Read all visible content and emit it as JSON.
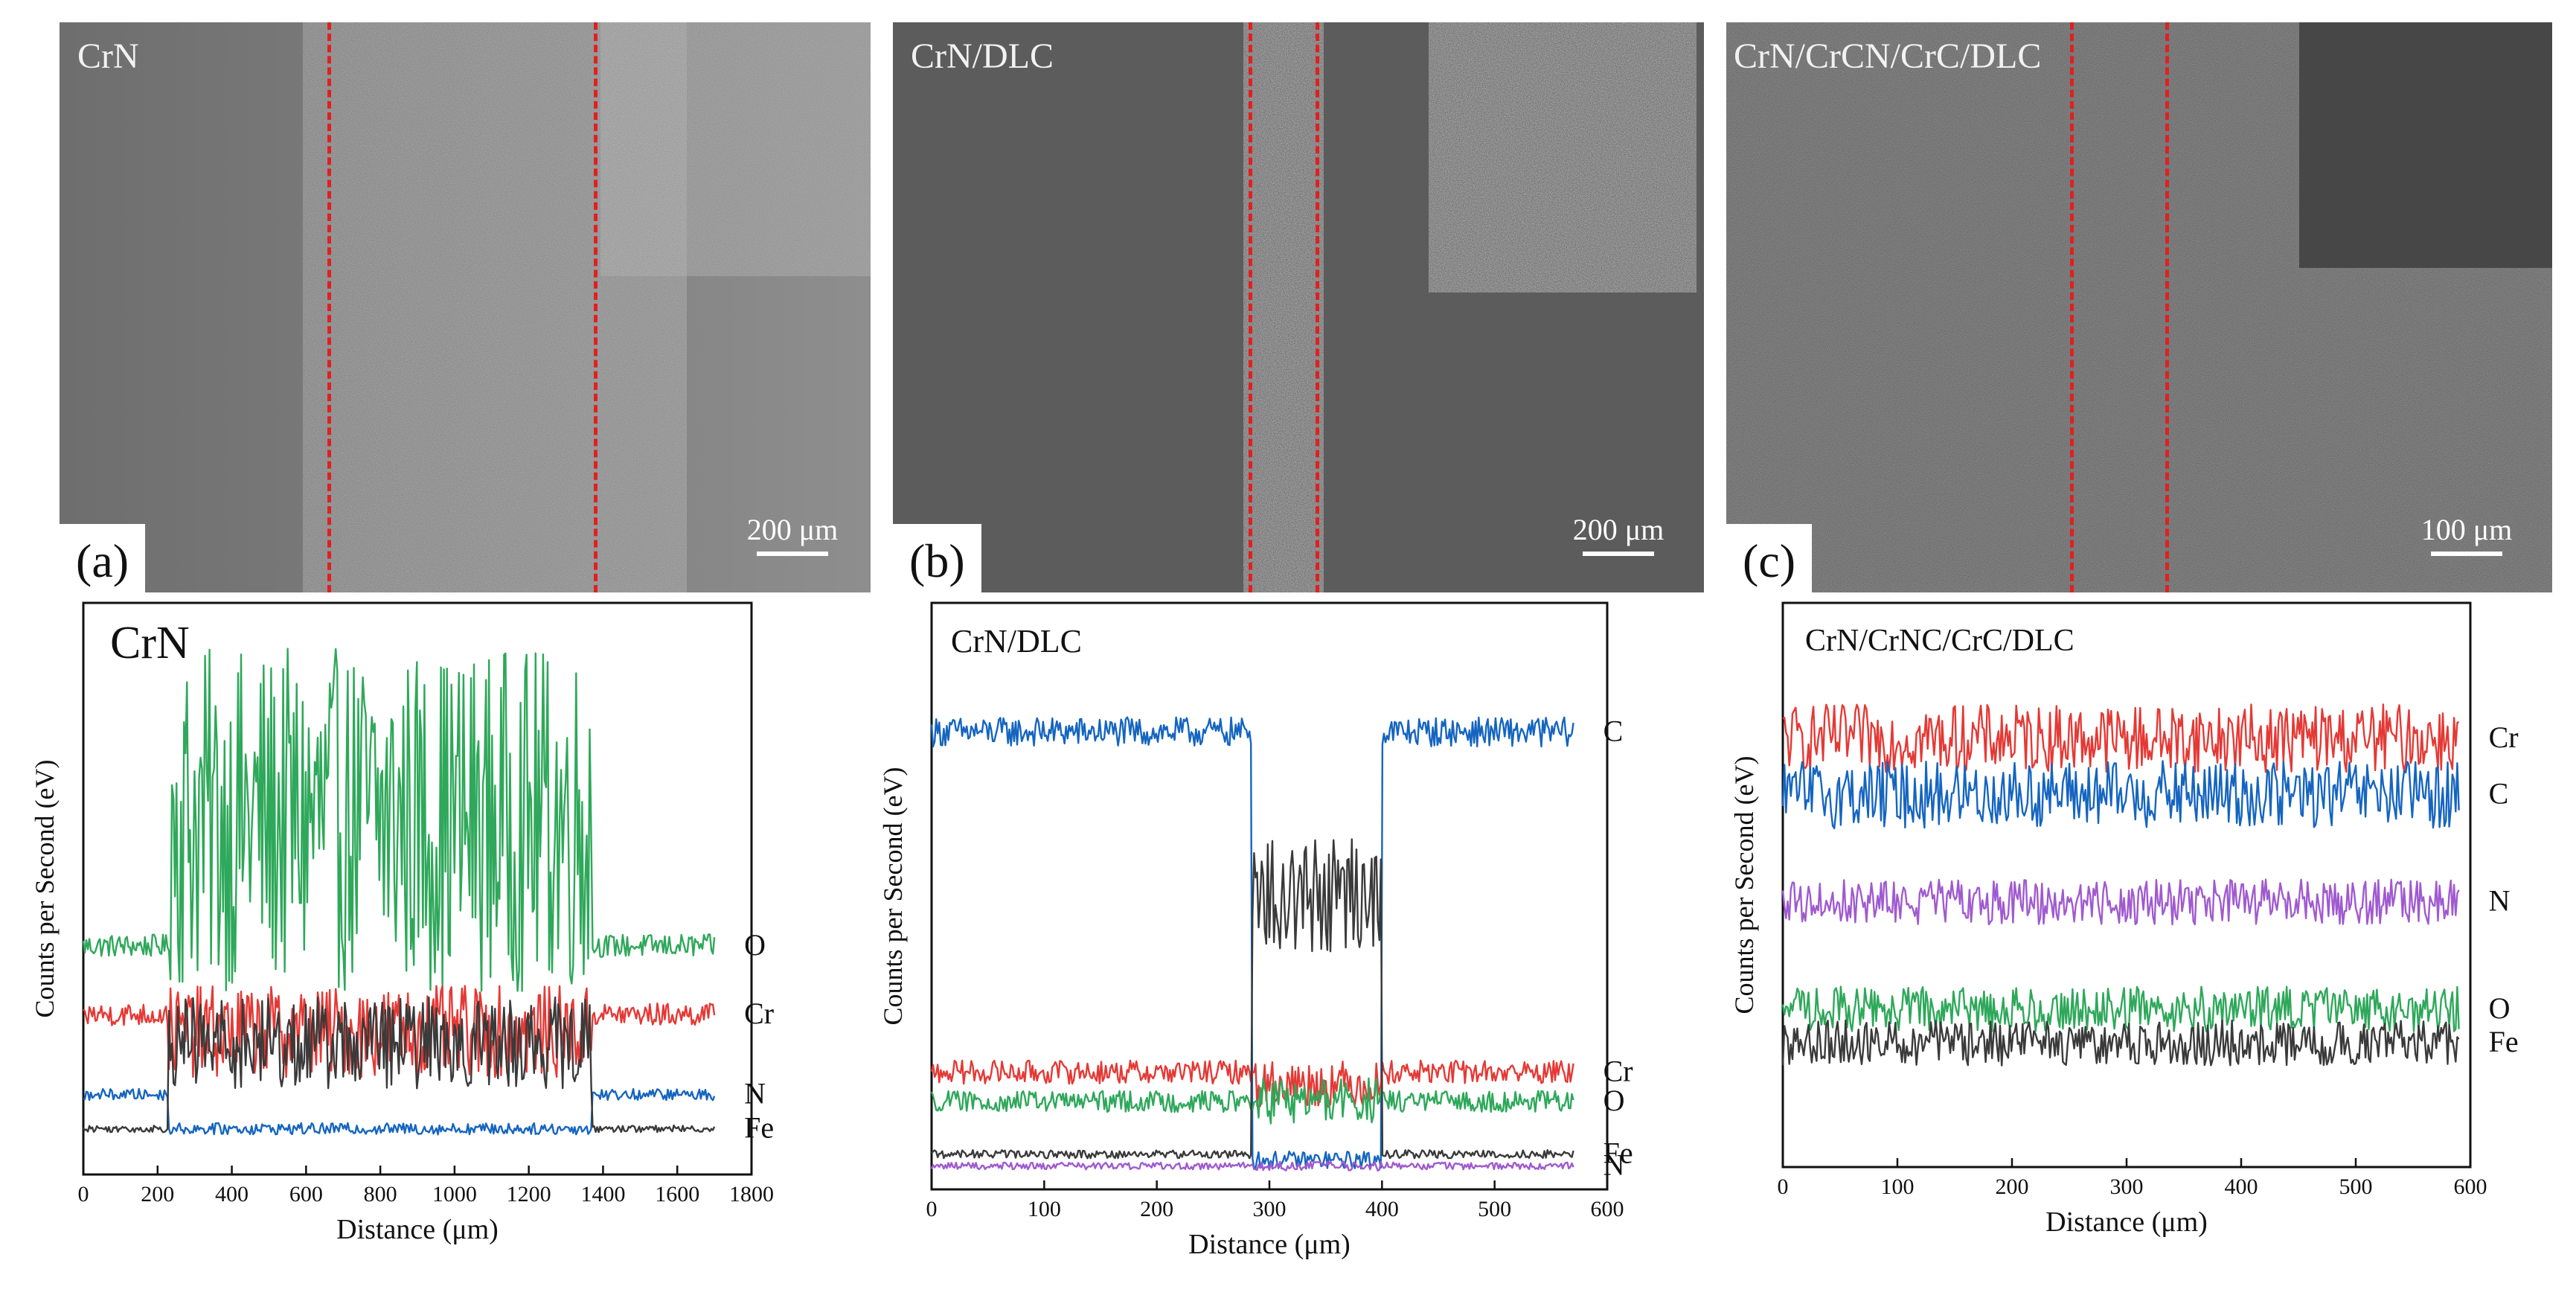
{
  "figure": {
    "panels": [
      {
        "label": "(a)",
        "sem_title": "CrN",
        "scale_bar": "200 μm"
      },
      {
        "label": "(b)",
        "sem_title": "CrN/DLC",
        "scale_bar": "200 μm"
      },
      {
        "label": "(c)",
        "sem_title": "CrN/CrCN/CrC/DLC",
        "scale_bar": "100 μm"
      }
    ]
  },
  "colors": {
    "O": "#2ea85a",
    "Cr": "#e53935",
    "N_a": "#1565c0",
    "C": "#1565c0",
    "Fe": "#3a3a3a",
    "N_purple": "#a05ad0",
    "marker": "#e02020"
  },
  "chart_data": [
    {
      "type": "line",
      "title": "CrN",
      "xlabel": "Distance (μm)",
      "ylabel": "Counts per Second (eV)",
      "xlim": [
        0,
        1800
      ],
      "x_ticks": [
        0,
        200,
        400,
        600,
        800,
        1000,
        1200,
        1400,
        1600,
        1800
      ],
      "x_tick_labels": [
        "0",
        "200",
        "400",
        "600",
        "800",
        "1000",
        "1200",
        "1400",
        "1600",
        "1800"
      ],
      "x_range_data": [
        0,
        1700
      ],
      "ylim": [
        0,
        100
      ],
      "wear_track": [
        230,
        1370
      ],
      "series": [
        {
          "name": "O",
          "color_key": "O",
          "base": 40,
          "noise": 2,
          "track_base": 62,
          "track_noise": 30
        },
        {
          "name": "Cr",
          "color_key": "Cr",
          "base": 28,
          "noise": 2,
          "track_base": 25,
          "track_noise": 8
        },
        {
          "name": "N",
          "color_key": "N_a",
          "base": 14,
          "noise": 1,
          "track_base": 8,
          "track_noise": 1
        },
        {
          "name": "Fe",
          "color_key": "Fe",
          "base": 8,
          "noise": 0.6,
          "track_base": 23,
          "track_noise": 8
        }
      ],
      "legend_labels": [
        "O",
        "Cr",
        "N",
        "Fe"
      ]
    },
    {
      "type": "line",
      "title": "CrN/DLC",
      "xlabel": "Distance (μm)",
      "ylabel": "Counts per Second (eV)",
      "xlim": [
        0,
        600
      ],
      "x_ticks": [
        0,
        100,
        200,
        300,
        400,
        500,
        600
      ],
      "x_tick_labels": [
        "0",
        "100",
        "200",
        "300",
        "400",
        "500",
        "600"
      ],
      "x_range_data": [
        0,
        570
      ],
      "ylim": [
        0,
        100
      ],
      "wear_track": [
        285,
        400
      ],
      "series": [
        {
          "name": "C",
          "color_key": "C",
          "base": 78,
          "noise": 2.5,
          "track_base": 5,
          "track_noise": 1.5
        },
        {
          "name": "Cr",
          "color_key": "Cr",
          "base": 20,
          "noise": 2,
          "track_base": 18,
          "track_noise": 4
        },
        {
          "name": "O",
          "color_key": "O",
          "base": 15,
          "noise": 1.8,
          "track_base": 15,
          "track_noise": 4
        },
        {
          "name": "Fe",
          "color_key": "Fe",
          "base": 6,
          "noise": 0.7,
          "track_base": 50,
          "track_noise": 10
        },
        {
          "name": "N",
          "color_key": "N_purple",
          "base": 4,
          "noise": 0.6,
          "track_base": 4,
          "track_noise": 0.8
        }
      ],
      "legend_labels": [
        "C",
        "Cr",
        "O",
        "Fe",
        "N"
      ]
    },
    {
      "type": "line",
      "title": "CrN/CrNC/CrC/DLC",
      "xlabel": "Distance (μm)",
      "ylabel": "Counts per Second (eV)",
      "xlim": [
        0,
        600
      ],
      "x_ticks": [
        0,
        100,
        200,
        300,
        400,
        500,
        600
      ],
      "x_tick_labels": [
        "0",
        "100",
        "200",
        "300",
        "400",
        "500",
        "600"
      ],
      "x_range_data": [
        0,
        590
      ],
      "ylim": [
        0,
        100
      ],
      "series": [
        {
          "name": "Cr",
          "color_key": "Cr",
          "base": 76,
          "noise": 6
        },
        {
          "name": "C",
          "color_key": "C",
          "base": 66,
          "noise": 6
        },
        {
          "name": "N",
          "color_key": "N_purple",
          "base": 47,
          "noise": 4
        },
        {
          "name": "O",
          "color_key": "O",
          "base": 28,
          "noise": 4
        },
        {
          "name": "Fe",
          "color_key": "Fe",
          "base": 22,
          "noise": 4
        }
      ],
      "legend_labels": [
        "Cr",
        "C",
        "N",
        "O",
        "Fe"
      ]
    }
  ]
}
